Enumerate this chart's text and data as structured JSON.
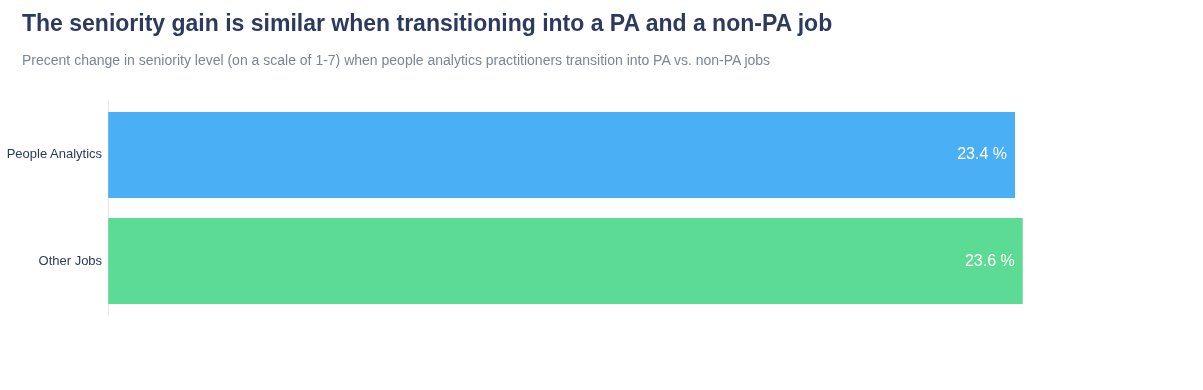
{
  "chart_data": {
    "type": "bar",
    "orientation": "horizontal",
    "title": "The seniority gain is similar when transitioning into a PA and a non-PA job",
    "subtitle": "Precent change in seniority level (on a scale of 1-7) when people analytics practitioners transition into PA vs. non-PA jobs",
    "categories": [
      "People Analytics",
      "Other Jobs"
    ],
    "values": [
      23.4,
      23.6
    ],
    "colors": [
      "#4aaff5",
      "#5cdb94"
    ],
    "value_labels": [
      "23.4 %",
      "23.6 %"
    ],
    "grid": false,
    "legend": false
  }
}
